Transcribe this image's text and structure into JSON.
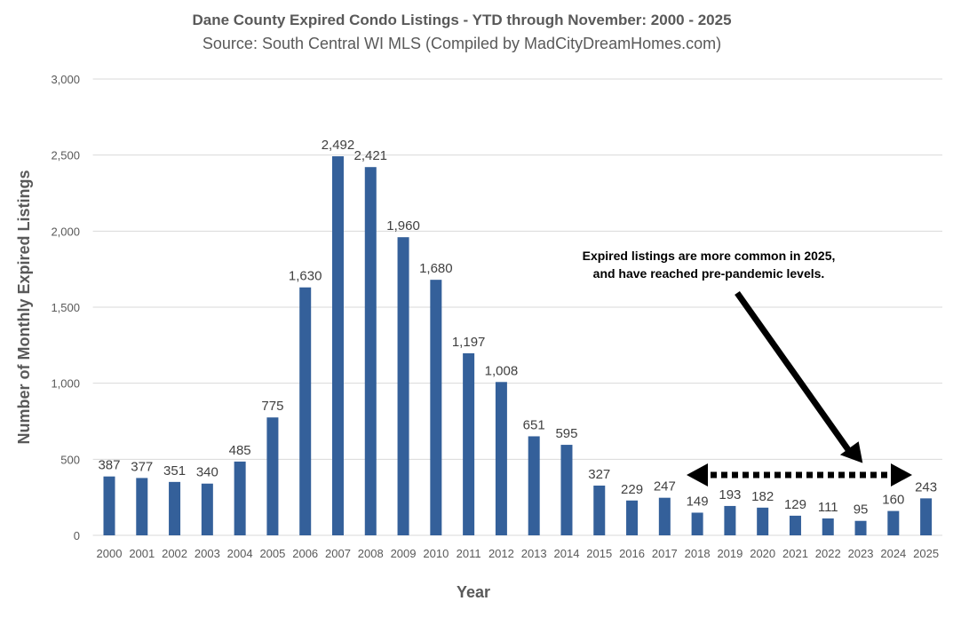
{
  "chart_data": {
    "type": "bar",
    "title": "Dane County Expired Condo Listings - YTD through November: 2000 - 2025",
    "subtitle": "Source: South Central WI MLS (Compiled by MadCityDreamHomes.com)",
    "xlabel": "Year",
    "ylabel": "Number of Monthly Expired Listings",
    "ylim": [
      0,
      3000
    ],
    "yticks": [
      0,
      500,
      1000,
      1500,
      2000,
      2500,
      3000
    ],
    "ytick_labels": [
      "0",
      "500",
      "1,000",
      "1,500",
      "2,000",
      "2,500",
      "3,000"
    ],
    "grid": true,
    "legend": "none",
    "bar_color": "#34609a",
    "categories": [
      "2000",
      "2001",
      "2002",
      "2003",
      "2004",
      "2005",
      "2006",
      "2007",
      "2008",
      "2009",
      "2010",
      "2011",
      "2012",
      "2013",
      "2014",
      "2015",
      "2016",
      "2017",
      "2018",
      "2019",
      "2020",
      "2021",
      "2022",
      "2023",
      "2024",
      "2025"
    ],
    "values": [
      387,
      377,
      351,
      340,
      485,
      775,
      1630,
      2492,
      2421,
      1960,
      1680,
      1197,
      1008,
      651,
      595,
      327,
      229,
      247,
      149,
      193,
      182,
      129,
      111,
      95,
      160,
      243
    ],
    "annotation": {
      "lines": [
        "Expired listings are more common in 2025,",
        "and have reached pre-pandemic levels."
      ],
      "arrow_target": "2023",
      "range_arrow": [
        "2018",
        "2024"
      ]
    }
  }
}
